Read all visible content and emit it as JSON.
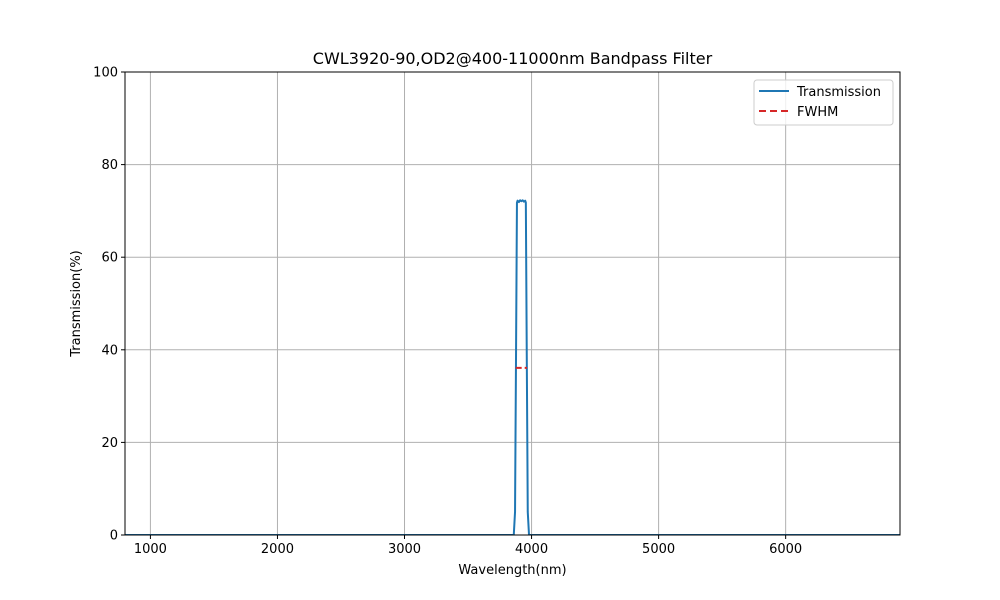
{
  "chart_data": {
    "type": "line",
    "title": "CWL3920-90,OD2@400-11000nm Bandpass Filter",
    "xlabel": "Wavelength(nm)",
    "ylabel": "Transmission(%)",
    "xlim": [
      800,
      6900
    ],
    "ylim": [
      0,
      100
    ],
    "xticks": [
      1000,
      2000,
      3000,
      4000,
      5000,
      6000
    ],
    "yticks": [
      0,
      20,
      40,
      60,
      80,
      100
    ],
    "grid": true,
    "legend": "top-right",
    "series": [
      {
        "name": "Transmission",
        "color": "#1f77b4",
        "style": "solid",
        "x": [
          800,
          3860,
          3870,
          3878,
          3885,
          3890,
          3900,
          3910,
          3920,
          3930,
          3940,
          3950,
          3955,
          3962,
          3970,
          3980,
          6900
        ],
        "y": [
          0,
          0,
          5,
          40,
          71.8,
          72.2,
          71.9,
          72.3,
          72.1,
          72.3,
          72.0,
          72.2,
          71.8,
          40,
          5,
          0,
          0
        ]
      },
      {
        "name": "FWHM",
        "color": "#d62728",
        "style": "dashed",
        "x": [
          3875,
          3965
        ],
        "y": [
          36.1,
          36.1
        ]
      }
    ]
  }
}
